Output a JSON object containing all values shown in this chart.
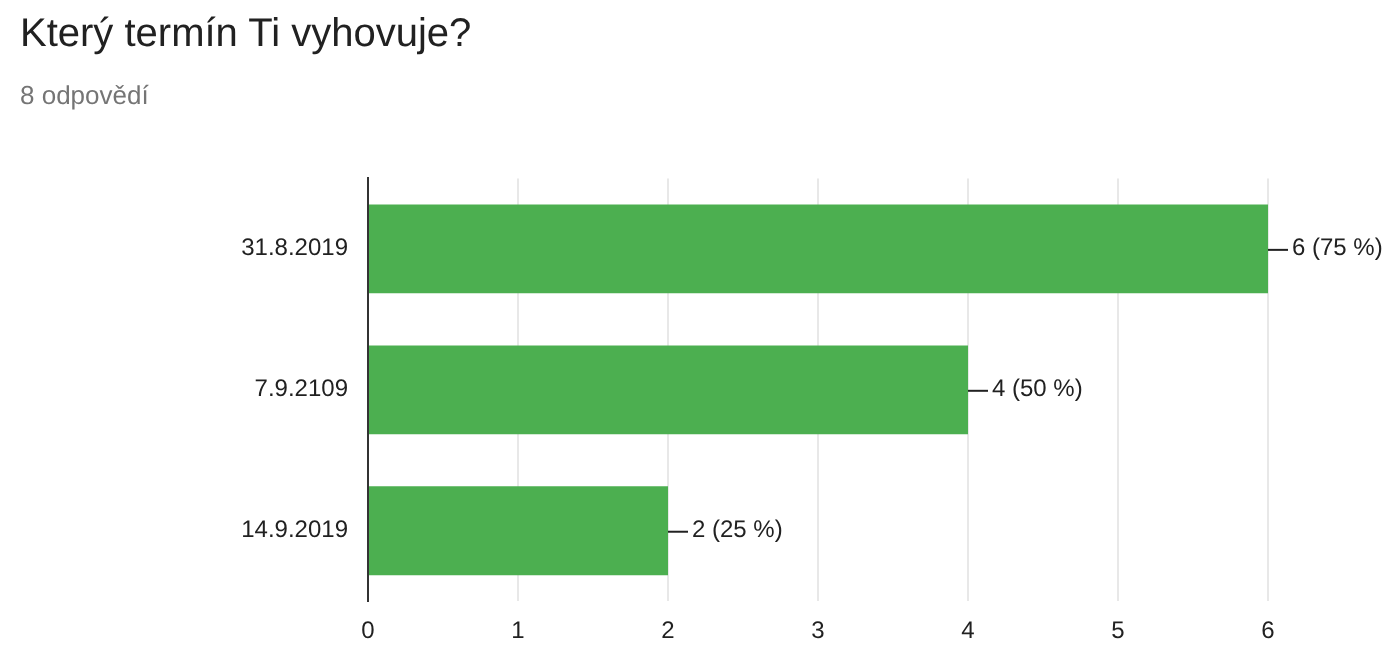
{
  "chart_data": {
    "type": "bar",
    "title": "Který termín Ti vyhovuje?",
    "subtitle": "8 odpovědí",
    "orientation": "horizontal",
    "categories": [
      "31.8.2019",
      "7.9.2109",
      "14.9.2019"
    ],
    "values": [
      6,
      4,
      2
    ],
    "color": "#4caf50",
    "value_labels": [
      "6 (75 %)",
      "4 (50 %)",
      "2 (25 %)"
    ],
    "xlim": [
      0,
      6
    ],
    "xticks": [
      0,
      1,
      2,
      3,
      4,
      5,
      6
    ],
    "grid": "x",
    "legend": false
  }
}
